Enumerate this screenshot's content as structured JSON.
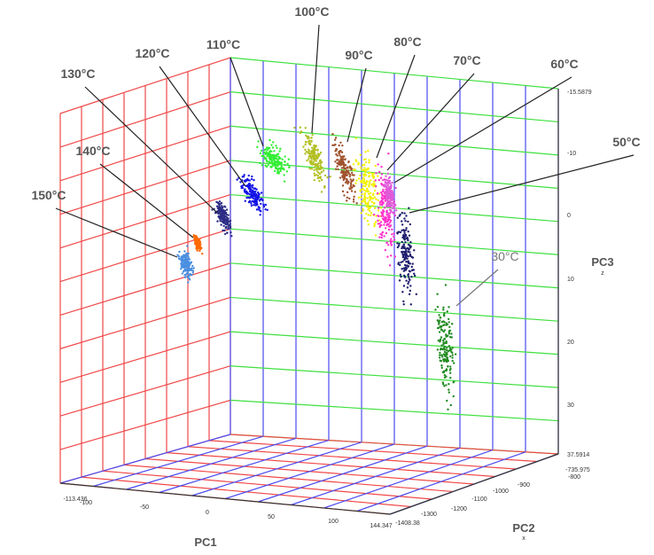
{
  "clusters": [
    {
      "label": "150°C",
      "color": "#4a8fe0"
    },
    {
      "label": "140°C",
      "color": "#ff6a00"
    },
    {
      "label": "130°C",
      "color": "#2c2c86"
    },
    {
      "label": "120°C",
      "color": "#1414e6"
    },
    {
      "label": "110°C",
      "color": "#33ee33"
    },
    {
      "label": "100°C",
      "color": "#b2bf22"
    },
    {
      "label": "90°C",
      "color": "#a0522d"
    },
    {
      "label": "80°C",
      "color": "#f2f000"
    },
    {
      "label": "70°C",
      "color": "#ff33cc"
    },
    {
      "label": "60°C",
      "color": "#e05ad8"
    },
    {
      "label": "50°C",
      "color": "#1e1e6e"
    },
    {
      "label": "30°C",
      "color": "#228b22"
    }
  ],
  "axes": {
    "pc1": {
      "title": "PC1",
      "ticks": [
        "-113.436",
        "-100",
        "-50",
        "0",
        "50",
        "100",
        "144.347"
      ]
    },
    "pc2": {
      "title": "PC2",
      "sub": "x",
      "ticks": [
        "-1408.38",
        "-1300",
        "-1200",
        "-1100",
        "-1000",
        "-900",
        "-800",
        "-735.975"
      ]
    },
    "pc3": {
      "title": "PC3",
      "sub": "z",
      "ticks": [
        "-15.5879",
        "-10",
        "0",
        "10",
        "20",
        "30",
        "37.5914"
      ]
    }
  }
}
